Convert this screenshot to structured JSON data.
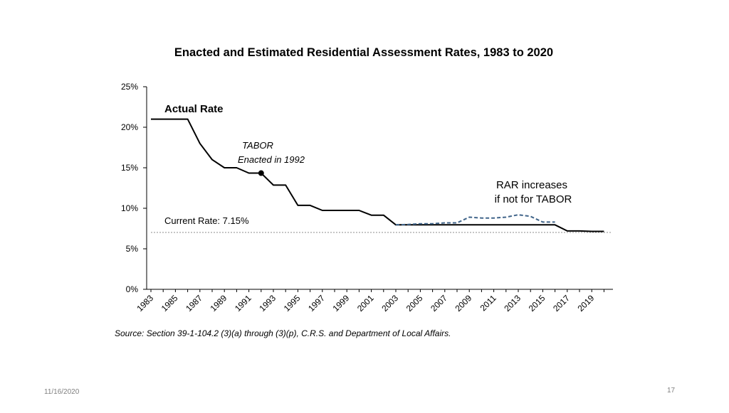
{
  "chart_data": {
    "type": "line",
    "title": "Enacted and Estimated Residential Assessment Rates, 1983 to 2020",
    "xlabel": "",
    "ylabel": "",
    "xlim": [
      1983,
      2020
    ],
    "ylim": [
      0,
      25
    ],
    "yticks": [
      0,
      5,
      10,
      15,
      20,
      25
    ],
    "ytick_labels": [
      "0%",
      "5%",
      "10%",
      "15%",
      "20%",
      "25%"
    ],
    "xtick_labels": [
      "1983",
      "1985",
      "1987",
      "1989",
      "1991",
      "1993",
      "1995",
      "1997",
      "1999",
      "2001",
      "2003",
      "2005",
      "2007",
      "2009",
      "2011",
      "2013",
      "2015",
      "2017",
      "2019"
    ],
    "grid": false,
    "series": [
      {
        "name": "Actual Rate",
        "style": "solid",
        "color": "#000000",
        "x": [
          1983,
          1984,
          1985,
          1986,
          1987,
          1988,
          1989,
          1990,
          1991,
          1992,
          1993,
          1994,
          1995,
          1996,
          1997,
          1998,
          1999,
          2000,
          2001,
          2002,
          2003,
          2004,
          2005,
          2006,
          2007,
          2008,
          2009,
          2010,
          2011,
          2012,
          2013,
          2014,
          2015,
          2016,
          2017,
          2018,
          2019,
          2020
        ],
        "values": [
          21,
          21,
          21,
          21,
          18,
          16,
          15,
          15,
          14.34,
          14.34,
          12.86,
          12.86,
          10.36,
          10.36,
          9.74,
          9.74,
          9.74,
          9.74,
          9.15,
          9.15,
          7.96,
          7.96,
          7.96,
          7.96,
          7.96,
          7.96,
          7.96,
          7.96,
          7.96,
          7.96,
          7.96,
          7.96,
          7.96,
          7.96,
          7.2,
          7.2,
          7.15,
          7.15
        ]
      },
      {
        "name": "RAR increases if not for TABOR",
        "style": "dashed",
        "color": "#41658a",
        "x": [
          2003,
          2004,
          2005,
          2006,
          2007,
          2008,
          2009,
          2010,
          2011,
          2012,
          2013,
          2014,
          2015,
          2016
        ],
        "values": [
          7.96,
          8.0,
          8.1,
          8.1,
          8.2,
          8.2,
          8.9,
          8.8,
          8.8,
          8.9,
          9.2,
          9.0,
          8.3,
          8.3
        ]
      }
    ],
    "reference_line": {
      "label": "Current Rate: 7.15%",
      "value": 7.15,
      "color": "#8c8c8c"
    },
    "marker": {
      "x": 1992,
      "value": 14.34,
      "label_line1": "TABOR",
      "label_line2": "Enacted in 1992"
    },
    "annotations": {
      "actual_rate": "Actual Rate",
      "rar_line1": "RAR increases",
      "rar_line2": "if not for TABOR"
    },
    "source": "Source: Section 39-1-104.2 (3)(a) through (3)(p), C.R.S. and Department of Local Affairs."
  },
  "footer": {
    "date": "11/16/2020",
    "page": "17"
  }
}
